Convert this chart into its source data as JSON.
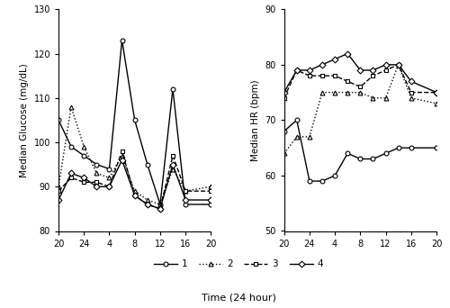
{
  "gx": [
    20,
    22,
    24,
    26,
    28,
    30,
    32,
    34,
    36,
    38,
    40,
    44
  ],
  "g1": [
    105,
    99,
    97,
    95,
    94,
    123,
    105,
    95,
    86,
    112,
    86,
    86
  ],
  "g2": [
    90,
    108,
    99,
    93,
    92,
    97,
    89,
    87,
    86,
    94,
    89,
    90
  ],
  "g3": [
    89,
    92,
    91,
    91,
    90,
    98,
    88,
    86,
    85,
    97,
    89,
    89
  ],
  "g4": [
    87,
    93,
    92,
    90,
    90,
    96,
    88,
    86,
    85,
    95,
    87,
    87
  ],
  "hrx": [
    20,
    22,
    24,
    26,
    28,
    30,
    32,
    34,
    36,
    38,
    40,
    44
  ],
  "hr1": [
    68,
    70,
    59,
    59,
    60,
    64,
    63,
    63,
    64,
    65,
    65,
    65
  ],
  "hr2": [
    64,
    67,
    67,
    75,
    75,
    75,
    75,
    74,
    74,
    80,
    74,
    73
  ],
  "hr3": [
    74,
    79,
    78,
    78,
    78,
    77,
    76,
    78,
    79,
    80,
    75,
    75
  ],
  "hr4": [
    75,
    79,
    79,
    80,
    81,
    82,
    79,
    79,
    80,
    80,
    77,
    75
  ],
  "xtick_pos": [
    20,
    24,
    28,
    32,
    36,
    40,
    44
  ],
  "xtick_labels": [
    "20",
    "24",
    "4",
    "8",
    "12",
    "16",
    "20"
  ],
  "yticks_glucose": [
    80,
    90,
    100,
    110,
    120,
    130
  ],
  "yticks_hr": [
    50,
    60,
    70,
    80,
    90
  ],
  "ylim_glucose": [
    80,
    130
  ],
  "ylim_hr": [
    50,
    90
  ],
  "xlim": [
    20,
    44
  ],
  "ylabel_glucose": "Median Glucose (mg/dL)",
  "ylabel_hr": "Median HR (bpm)",
  "xlabel": "Time (24 hour)",
  "legend_labels": [
    "1",
    "2",
    "3",
    "4"
  ]
}
